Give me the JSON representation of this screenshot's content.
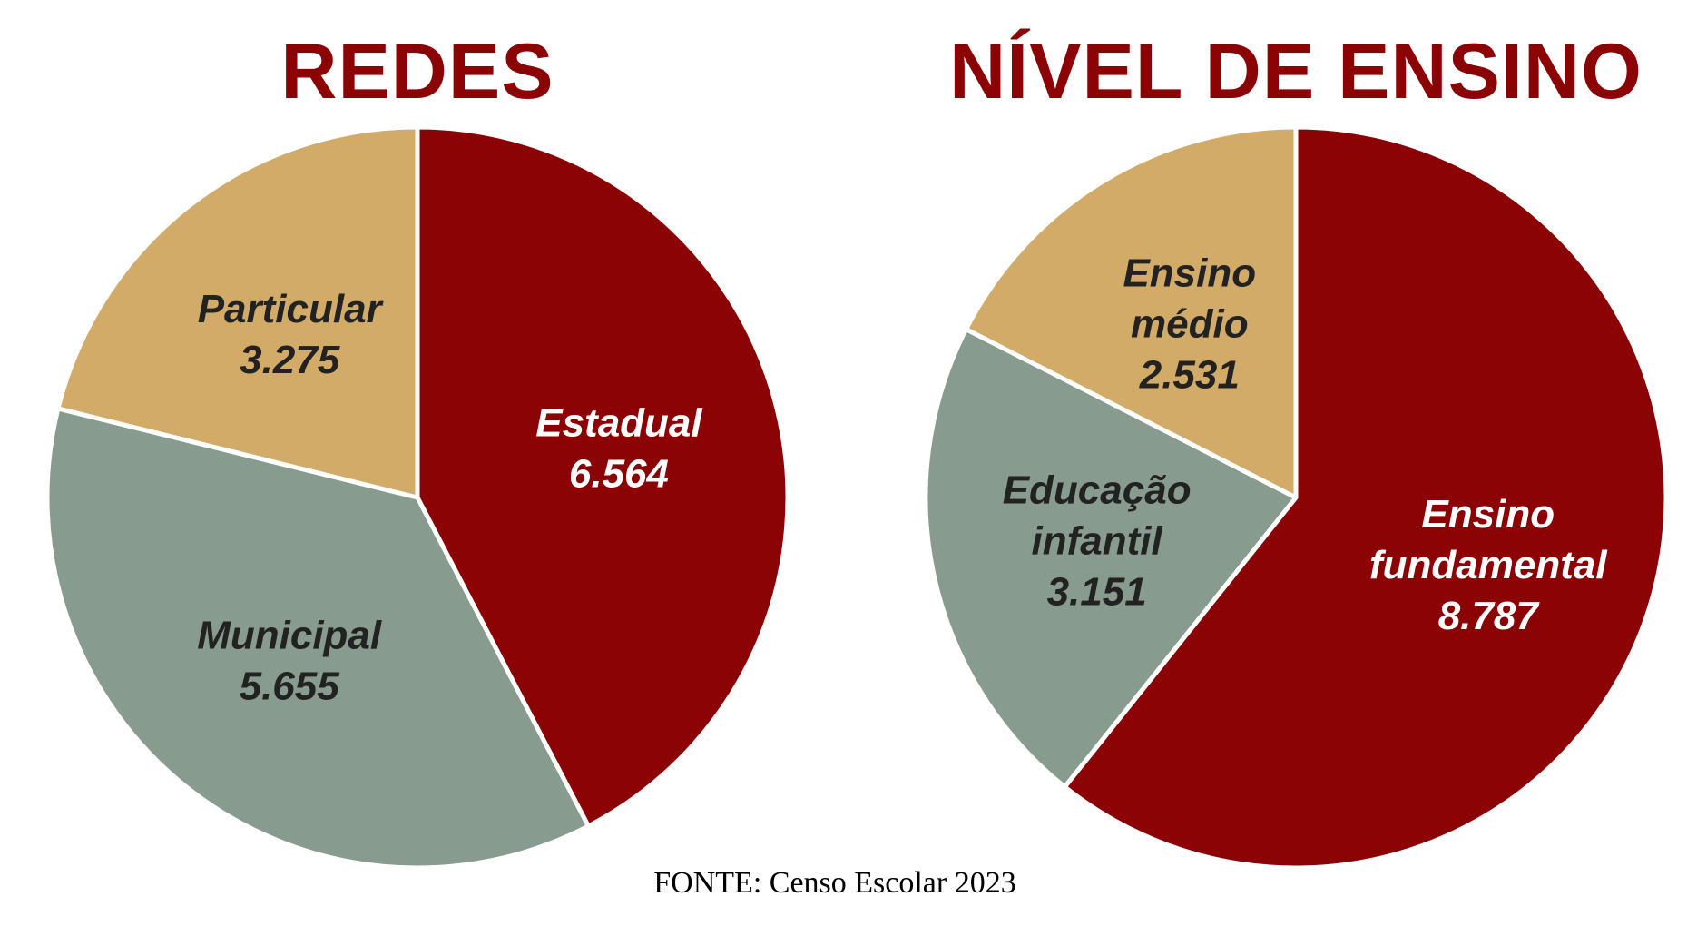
{
  "chart_data": [
    {
      "type": "pie",
      "title": "REDES",
      "slices": [
        {
          "label": "Estadual",
          "value": 6564,
          "value_text": "6.564",
          "color": "#8b0304",
          "text_color": "#ffffff"
        },
        {
          "label": "Municipal",
          "value": 5655,
          "value_text": "5.655",
          "color": "#889b8f",
          "text_color": "#222222"
        },
        {
          "label": "Particular",
          "value": 3275,
          "value_text": "3.275",
          "color": "#d3ab69",
          "text_color": "#222222"
        }
      ]
    },
    {
      "type": "pie",
      "title": "NÍVEL DE ENSINO",
      "slices": [
        {
          "label": "Ensino fundamental",
          "label_lines": [
            "Ensino",
            "fundamental"
          ],
          "value": 8787,
          "value_text": "8.787",
          "color": "#8b0304",
          "text_color": "#ffffff"
        },
        {
          "label": "Educação infantil",
          "label_lines": [
            "Educação",
            "infantil"
          ],
          "value": 3151,
          "value_text": "3.151",
          "color": "#889b8f",
          "text_color": "#222222"
        },
        {
          "label": "Ensino médio",
          "label_lines": [
            "Ensino",
            "médio"
          ],
          "value": 2531,
          "value_text": "2.531",
          "color": "#d3ab69",
          "text_color": "#222222"
        }
      ]
    }
  ],
  "source": "FONTE: Censo Escolar 2023",
  "colors": {
    "title": "#8b0304",
    "source_text": "#222222",
    "separator": "#ffffff"
  }
}
